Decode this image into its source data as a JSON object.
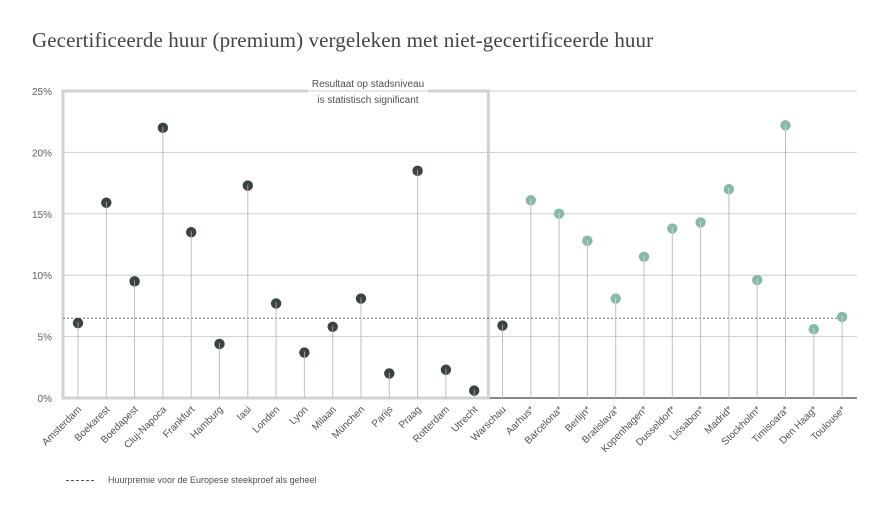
{
  "chart_data": {
    "type": "scatter",
    "subtype": "lollipop",
    "title": "Gecertificeerde huur (premium) vergeleken met niet-gecertificeerde huur",
    "xlabel": "",
    "ylabel": "",
    "ylim": [
      0,
      25
    ],
    "yticks": [
      0,
      5,
      10,
      15,
      20,
      25
    ],
    "ytick_labels": [
      "0%",
      "5%",
      "10%",
      "15%",
      "20%",
      "25%"
    ],
    "grid": true,
    "reference_line": {
      "value": 6.5,
      "label": "Huurpremie voor de Europese steekproef als geheel",
      "style": "dashed"
    },
    "box_annotation": {
      "label_lines": [
        "Resultaat op stadsniveau",
        "is statistisch significant"
      ],
      "first_category": "Amsterdam",
      "last_category": "Utrecht"
    },
    "colors": {
      "significant": "#3a4244",
      "not_significant": "#86b9aa",
      "stem": "#b8c1c1",
      "grid": "#c9cfcf",
      "box": "#cfd3d3",
      "baseline": "#3a4244"
    },
    "categories": [
      "Amsterdam",
      "Boekarest",
      "Boedapest",
      "Cluj-Napoca",
      "Frankfurt",
      "Hamburg",
      "Iasi",
      "Londen",
      "Lyon",
      "Milaan",
      "München",
      "Parijs",
      "Praag",
      "Rotterdam",
      "Utrecht",
      "Warschau",
      "Aarhus*",
      "Barcelona*",
      "Berlijn*",
      "Bratislava*",
      "Kopenhagen*",
      "Dusseldorf*",
      "Lissabon*",
      "Madrid*",
      "Stockholm*",
      "Timisoara*",
      "Den Haag*",
      "Toulouse*"
    ],
    "values": [
      6.1,
      15.9,
      9.5,
      22.0,
      13.5,
      4.4,
      17.3,
      7.7,
      3.7,
      5.8,
      8.1,
      2.0,
      18.5,
      2.3,
      0.6,
      5.9,
      16.1,
      15.0,
      12.8,
      8.1,
      11.5,
      13.8,
      14.3,
      17.0,
      9.6,
      22.2,
      5.6,
      6.6
    ],
    "significant": [
      true,
      true,
      true,
      true,
      true,
      true,
      true,
      true,
      true,
      true,
      true,
      true,
      true,
      true,
      true,
      true,
      false,
      false,
      false,
      false,
      false,
      false,
      false,
      false,
      false,
      false,
      false,
      false
    ],
    "legend": {
      "position": "bottom-left",
      "entries": [
        "Huurpremie voor de Europese steekproef als geheel"
      ]
    }
  }
}
